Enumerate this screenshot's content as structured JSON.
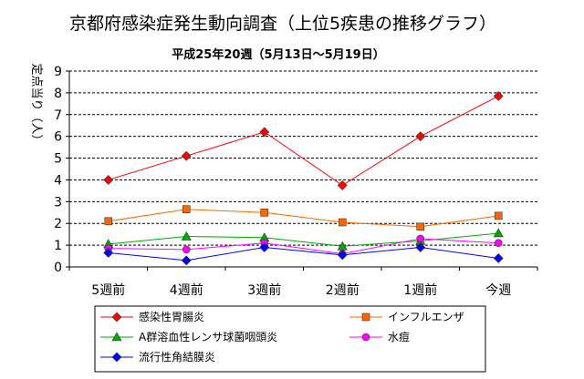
{
  "chart_data": {
    "type": "line",
    "title": "京都府感染症発生動向調査（上位5疾患の推移グラフ）",
    "subtitle": "平成25年20週（5月13日～5月19日）",
    "ylabel": "定点当り（人）",
    "categories": [
      "5週前",
      "4週前",
      "3週前",
      "2週前",
      "1週前",
      "今週"
    ],
    "ylim": [
      0,
      9
    ],
    "yticks": [
      0,
      1,
      2,
      3,
      4,
      5,
      6,
      7,
      8,
      9
    ],
    "grid": true,
    "legend_position": "bottom",
    "series": [
      {
        "name": "感染性胃腸炎",
        "values": [
          4.0,
          5.1,
          6.2,
          3.75,
          6.0,
          7.85
        ],
        "color": "#ff0000",
        "marker": "diamond"
      },
      {
        "name": "インフルエンザ",
        "values": [
          2.1,
          2.65,
          2.5,
          2.05,
          1.85,
          2.35
        ],
        "color": "#ff6600",
        "marker": "square"
      },
      {
        "name": "A群溶血性レンサ球菌咽頭炎",
        "values": [
          1.05,
          1.4,
          1.35,
          0.95,
          1.2,
          1.55
        ],
        "color": "#00aa00",
        "marker": "triangle"
      },
      {
        "name": "水痘",
        "values": [
          0.85,
          0.8,
          1.1,
          0.6,
          1.3,
          1.1
        ],
        "color": "#ff00ff",
        "marker": "circle"
      },
      {
        "name": "流行性角結膜炎",
        "values": [
          0.65,
          0.3,
          0.9,
          0.55,
          0.9,
          0.4
        ],
        "color": "#0000ff",
        "marker": "diamond"
      }
    ]
  }
}
